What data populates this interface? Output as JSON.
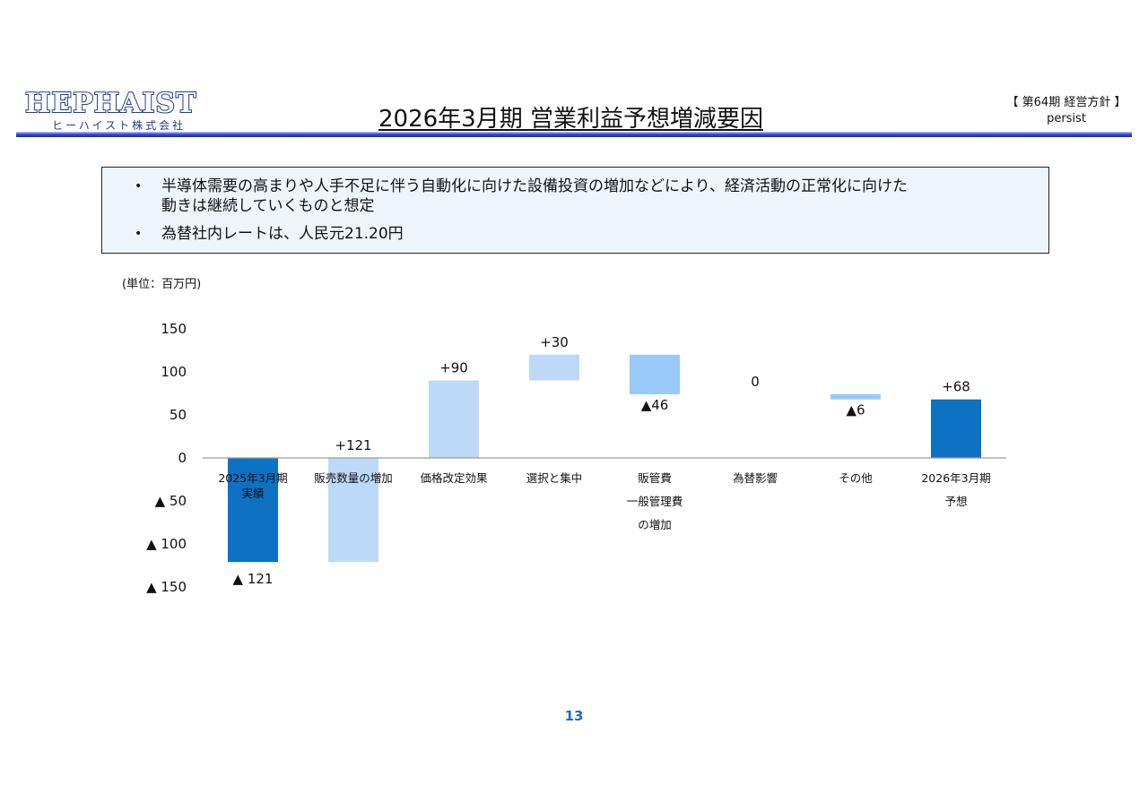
{
  "header": {
    "logo_text": "HEPHAIST",
    "company_name": "ヒーハイスト株式会社",
    "title": "2026年3月期 営業利益予想増減要因",
    "corner_line1": "【 第64期 経営方針 】",
    "corner_line2": "persist"
  },
  "note": {
    "bullets": [
      {
        "line1": "半導体需要の高まりや人手不足に伴う自動化に向けた設備投資の増加などにより、経済活動の正常化に向けた",
        "line2": "動きは継続していくものと想定"
      },
      {
        "line1": "為替社内レートは、人民元21.20円",
        "line2": ""
      }
    ]
  },
  "unit_label": "(単位：百万円)",
  "page_number": "13",
  "colors": {
    "total_bar": "#0d72c4",
    "increase_bar": "#bcdaf7",
    "decrease_bar": "#99c9f6",
    "rule_blue": "#1424b8",
    "note_bg": "#eef6fc"
  },
  "chart_data": {
    "type": "bar",
    "subtype": "waterfall",
    "categories": [
      [
        "2025年3月期",
        "実績"
      ],
      [
        "販売数量の増加"
      ],
      [
        "価格改定効果"
      ],
      [
        "選択と集中"
      ],
      [
        "販管費",
        "一般管理費",
        "の増加"
      ],
      [
        "為替影響"
      ],
      [
        "その他"
      ],
      [
        "2026年3月期",
        "予想"
      ]
    ],
    "bars": [
      {
        "start": 0,
        "end": -121,
        "kind": "total",
        "label": "▲ 121"
      },
      {
        "start": -121,
        "end": 0,
        "kind": "increase",
        "label": "+121"
      },
      {
        "start": 0,
        "end": 90,
        "kind": "increase",
        "label": "+90"
      },
      {
        "start": 90,
        "end": 120,
        "kind": "increase",
        "label": "+30"
      },
      {
        "start": 120,
        "end": 74,
        "kind": "decrease",
        "label": "▲46"
      },
      {
        "start": 74,
        "end": 74,
        "kind": "decrease",
        "label": "0"
      },
      {
        "start": 74,
        "end": 68,
        "kind": "decrease",
        "label": "▲6"
      },
      {
        "start": 0,
        "end": 68,
        "kind": "total",
        "label": "+68"
      }
    ],
    "yticks": [
      {
        "value": 150,
        "label": "150"
      },
      {
        "value": 100,
        "label": "100"
      },
      {
        "value": 50,
        "label": "50"
      },
      {
        "value": 0,
        "label": "0"
      },
      {
        "value": -50,
        "label": "▲ 50"
      },
      {
        "value": -100,
        "label": "▲ 100"
      },
      {
        "value": -150,
        "label": "▲ 150"
      }
    ],
    "ylim": [
      -150,
      150
    ],
    "grid": false,
    "legend": "none"
  }
}
